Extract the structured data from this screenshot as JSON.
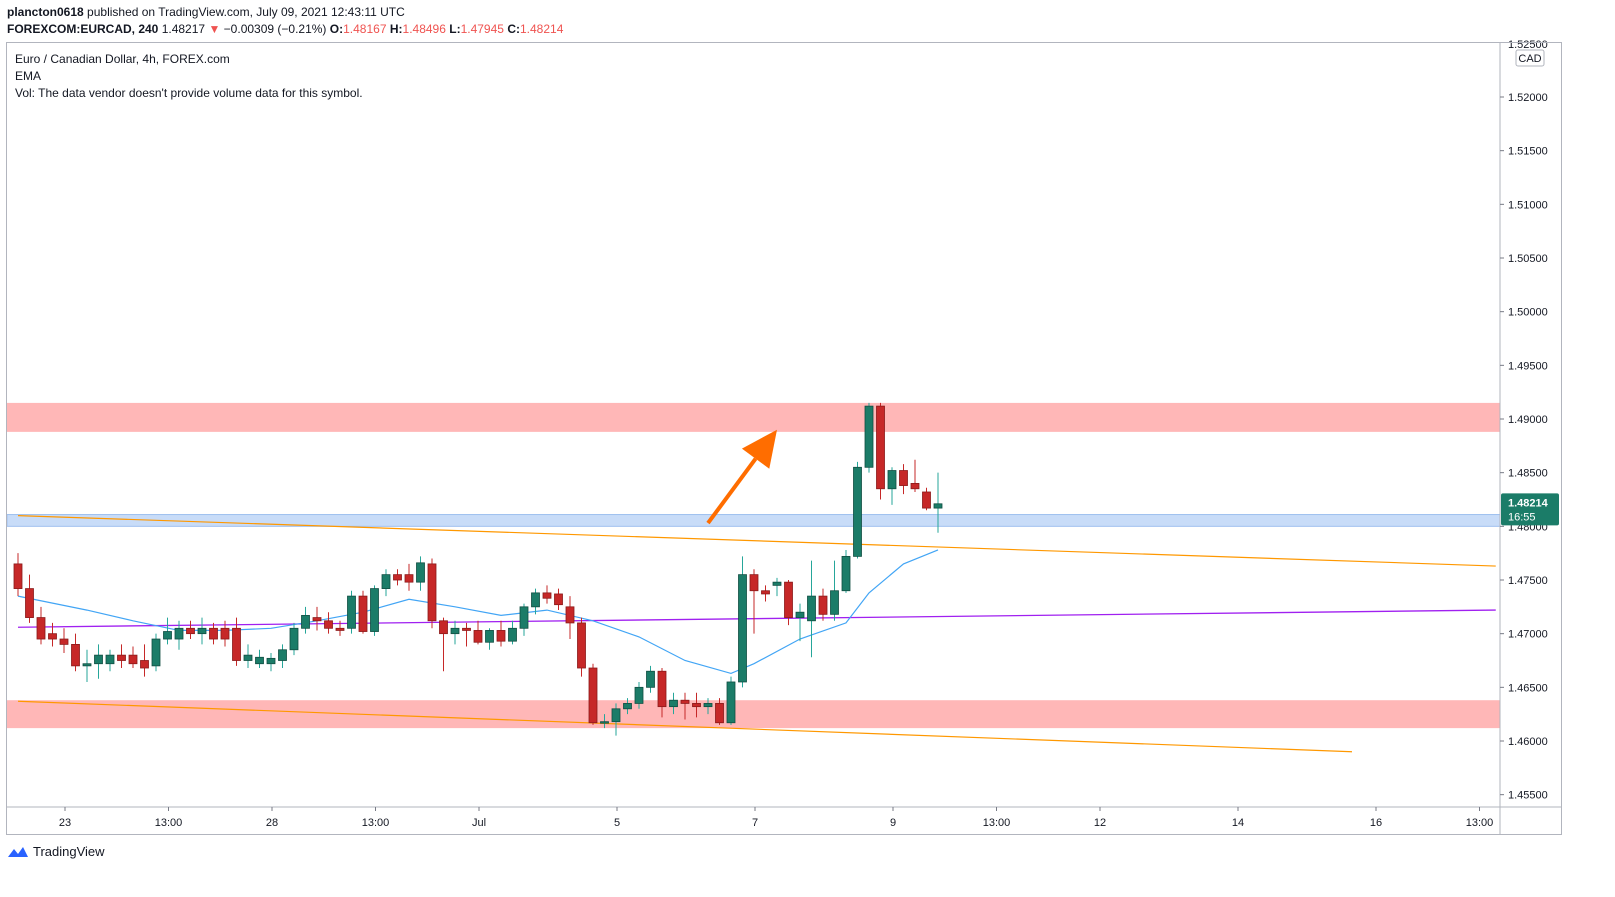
{
  "header": {
    "publisher": "plancton0618",
    "published_text": "published on TradingView.com, July 09, 2021 12:43:11 UTC",
    "symbol": "FOREXCOM:EURCAD, 240",
    "last": "1.48217",
    "change": "−0.00309 (−0.21%)",
    "o_label": "O:",
    "o": "1.48167",
    "h_label": "H:",
    "h": "1.48496",
    "l_label": "L:",
    "l": "1.47945",
    "c_label": "C:",
    "c": "1.48214"
  },
  "legend": {
    "title": "Euro / Canadian Dollar, 4h, FOREX.com",
    "indicator": "EMA",
    "volume_note": "Vol: The data vendor doesn't provide volume data for this symbol."
  },
  "price_scale": {
    "currency": "CAD",
    "current_price": "1.48214",
    "countdown": "16:55",
    "top_partial": "1.52500"
  },
  "branding": {
    "name": "TradingView"
  },
  "colors": {
    "up": "#26a69a",
    "up_body": "#1b7c68",
    "down": "#c62828",
    "resistance_zone": "#ffb7b7",
    "support_zone": "#c8dcf8",
    "trendline": "#ff9800",
    "ema": "#42a5f5",
    "purple_line": "#a020f0",
    "arrow": "#ff6d00",
    "price_tag": "#1b7c68"
  },
  "chart_data": {
    "type": "candlestick",
    "symbol": "FOREXCOM:EURCAD",
    "timeframe": "4h",
    "ylim": [
      1.454,
      1.525
    ],
    "y_ticks": [
      1.455,
      1.46,
      1.465,
      1.47,
      1.475,
      1.48,
      1.485,
      1.49,
      1.495,
      1.5,
      1.505,
      1.51,
      1.515,
      1.52
    ],
    "y_tick_labels": [
      "1.45500",
      "1.46000",
      "1.46500",
      "1.47000",
      "1.47500",
      "1.48000",
      "1.48500",
      "1.49000",
      "1.49500",
      "1.50000",
      "1.50500",
      "1.51000",
      "1.51500",
      "1.52000"
    ],
    "x_range": [
      0,
      125
    ],
    "x_ticks": [
      {
        "x": 4,
        "label": "23"
      },
      {
        "x": 13,
        "label": "13:00"
      },
      {
        "x": 22,
        "label": "28"
      },
      {
        "x": 31,
        "label": "13:00"
      },
      {
        "x": 40,
        "label": "Jul"
      },
      {
        "x": 52,
        "label": "5"
      },
      {
        "x": 64,
        "label": "7"
      },
      {
        "x": 76,
        "label": "9"
      },
      {
        "x": 85,
        "label": "13:00"
      },
      {
        "x": 94,
        "label": "12"
      },
      {
        "x": 106,
        "label": "14"
      },
      {
        "x": 118,
        "label": "16"
      },
      {
        "x": 127,
        "label": "13:00"
      }
    ],
    "candles": [
      {
        "o": 1.4765,
        "h": 1.4775,
        "l": 1.4735,
        "c": 1.4742
      },
      {
        "o": 1.4742,
        "h": 1.4755,
        "l": 1.471,
        "c": 1.4715
      },
      {
        "o": 1.4715,
        "h": 1.4725,
        "l": 1.469,
        "c": 1.4695
      },
      {
        "o": 1.47,
        "h": 1.471,
        "l": 1.4688,
        "c": 1.4695
      },
      {
        "o": 1.4695,
        "h": 1.4705,
        "l": 1.4682,
        "c": 1.469
      },
      {
        "o": 1.469,
        "h": 1.47,
        "l": 1.4665,
        "c": 1.467
      },
      {
        "o": 1.467,
        "h": 1.4685,
        "l": 1.4655,
        "c": 1.4672
      },
      {
        "o": 1.4672,
        "h": 1.469,
        "l": 1.4658,
        "c": 1.468
      },
      {
        "o": 1.4672,
        "h": 1.4685,
        "l": 1.4665,
        "c": 1.468
      },
      {
        "o": 1.468,
        "h": 1.469,
        "l": 1.4668,
        "c": 1.4675
      },
      {
        "o": 1.468,
        "h": 1.4688,
        "l": 1.4668,
        "c": 1.4672
      },
      {
        "o": 1.4675,
        "h": 1.469,
        "l": 1.466,
        "c": 1.4668
      },
      {
        "o": 1.467,
        "h": 1.47,
        "l": 1.4665,
        "c": 1.4695
      },
      {
        "o": 1.4695,
        "h": 1.4715,
        "l": 1.469,
        "c": 1.4702
      },
      {
        "o": 1.4695,
        "h": 1.4712,
        "l": 1.4685,
        "c": 1.4705
      },
      {
        "o": 1.4705,
        "h": 1.4712,
        "l": 1.4695,
        "c": 1.47
      },
      {
        "o": 1.47,
        "h": 1.4715,
        "l": 1.469,
        "c": 1.4705
      },
      {
        "o": 1.4705,
        "h": 1.471,
        "l": 1.469,
        "c": 1.4695
      },
      {
        "o": 1.4705,
        "h": 1.4712,
        "l": 1.4688,
        "c": 1.4695
      },
      {
        "o": 1.4705,
        "h": 1.4715,
        "l": 1.467,
        "c": 1.4675
      },
      {
        "o": 1.4675,
        "h": 1.469,
        "l": 1.4668,
        "c": 1.468
      },
      {
        "o": 1.4672,
        "h": 1.4685,
        "l": 1.4668,
        "c": 1.4678
      },
      {
        "o": 1.4672,
        "h": 1.4682,
        "l": 1.4665,
        "c": 1.4677
      },
      {
        "o": 1.4675,
        "h": 1.469,
        "l": 1.4668,
        "c": 1.4685
      },
      {
        "o": 1.4685,
        "h": 1.471,
        "l": 1.468,
        "c": 1.4705
      },
      {
        "o": 1.4705,
        "h": 1.4725,
        "l": 1.47,
        "c": 1.4717
      },
      {
        "o": 1.4715,
        "h": 1.4725,
        "l": 1.4703,
        "c": 1.4712
      },
      {
        "o": 1.4712,
        "h": 1.472,
        "l": 1.47,
        "c": 1.4705
      },
      {
        "o": 1.4705,
        "h": 1.4712,
        "l": 1.4698,
        "c": 1.4703
      },
      {
        "o": 1.4705,
        "h": 1.474,
        "l": 1.47,
        "c": 1.4735
      },
      {
        "o": 1.4735,
        "h": 1.474,
        "l": 1.47,
        "c": 1.4702
      },
      {
        "o": 1.4702,
        "h": 1.4745,
        "l": 1.4698,
        "c": 1.4742
      },
      {
        "o": 1.4742,
        "h": 1.476,
        "l": 1.4735,
        "c": 1.4755
      },
      {
        "o": 1.4755,
        "h": 1.476,
        "l": 1.4745,
        "c": 1.475
      },
      {
        "o": 1.4755,
        "h": 1.4765,
        "l": 1.474,
        "c": 1.4748
      },
      {
        "o": 1.4748,
        "h": 1.4772,
        "l": 1.474,
        "c": 1.4766
      },
      {
        "o": 1.4765,
        "h": 1.477,
        "l": 1.4705,
        "c": 1.4712
      },
      {
        "o": 1.4712,
        "h": 1.4715,
        "l": 1.4665,
        "c": 1.47
      },
      {
        "o": 1.47,
        "h": 1.4712,
        "l": 1.469,
        "c": 1.4705
      },
      {
        "o": 1.4705,
        "h": 1.471,
        "l": 1.4688,
        "c": 1.4703
      },
      {
        "o": 1.4703,
        "h": 1.4712,
        "l": 1.469,
        "c": 1.4692
      },
      {
        "o": 1.4692,
        "h": 1.4705,
        "l": 1.4685,
        "c": 1.4703
      },
      {
        "o": 1.4703,
        "h": 1.4712,
        "l": 1.4688,
        "c": 1.4693
      },
      {
        "o": 1.4693,
        "h": 1.4712,
        "l": 1.469,
        "c": 1.4705
      },
      {
        "o": 1.4705,
        "h": 1.4728,
        "l": 1.4698,
        "c": 1.4725
      },
      {
        "o": 1.4725,
        "h": 1.4742,
        "l": 1.4718,
        "c": 1.4738
      },
      {
        "o": 1.4738,
        "h": 1.4745,
        "l": 1.4728,
        "c": 1.4733
      },
      {
        "o": 1.4737,
        "h": 1.4742,
        "l": 1.4722,
        "c": 1.4727
      },
      {
        "o": 1.4725,
        "h": 1.4735,
        "l": 1.4695,
        "c": 1.471
      },
      {
        "o": 1.471,
        "h": 1.4715,
        "l": 1.466,
        "c": 1.4668
      },
      {
        "o": 1.4668,
        "h": 1.4672,
        "l": 1.4615,
        "c": 1.4617
      },
      {
        "o": 1.4617,
        "h": 1.4625,
        "l": 1.4612,
        "c": 1.4618
      },
      {
        "o": 1.4618,
        "h": 1.4635,
        "l": 1.4605,
        "c": 1.463
      },
      {
        "o": 1.463,
        "h": 1.464,
        "l": 1.4625,
        "c": 1.4635
      },
      {
        "o": 1.4635,
        "h": 1.4655,
        "l": 1.463,
        "c": 1.465
      },
      {
        "o": 1.465,
        "h": 1.467,
        "l": 1.4645,
        "c": 1.4665
      },
      {
        "o": 1.4665,
        "h": 1.4668,
        "l": 1.4622,
        "c": 1.4632
      },
      {
        "o": 1.4632,
        "h": 1.4645,
        "l": 1.4625,
        "c": 1.4638
      },
      {
        "o": 1.4638,
        "h": 1.4645,
        "l": 1.462,
        "c": 1.4635
      },
      {
        "o": 1.4635,
        "h": 1.4645,
        "l": 1.4622,
        "c": 1.4632
      },
      {
        "o": 1.4632,
        "h": 1.464,
        "l": 1.4625,
        "c": 1.4635
      },
      {
        "o": 1.4635,
        "h": 1.464,
        "l": 1.4615,
        "c": 1.4617
      },
      {
        "o": 1.4617,
        "h": 1.466,
        "l": 1.4615,
        "c": 1.4655
      },
      {
        "o": 1.4655,
        "h": 1.4772,
        "l": 1.465,
        "c": 1.4755
      },
      {
        "o": 1.4755,
        "h": 1.476,
        "l": 1.47,
        "c": 1.474
      },
      {
        "o": 1.474,
        "h": 1.4745,
        "l": 1.473,
        "c": 1.4737
      },
      {
        "o": 1.4745,
        "h": 1.4752,
        "l": 1.4735,
        "c": 1.4748
      },
      {
        "o": 1.4748,
        "h": 1.475,
        "l": 1.4708,
        "c": 1.4715
      },
      {
        "o": 1.4715,
        "h": 1.4728,
        "l": 1.4693,
        "c": 1.472
      },
      {
        "o": 1.4712,
        "h": 1.4768,
        "l": 1.4678,
        "c": 1.4735
      },
      {
        "o": 1.4735,
        "h": 1.4742,
        "l": 1.4712,
        "c": 1.4718
      },
      {
        "o": 1.4718,
        "h": 1.4768,
        "l": 1.4712,
        "c": 1.474
      },
      {
        "o": 1.474,
        "h": 1.4778,
        "l": 1.4738,
        "c": 1.4772
      },
      {
        "o": 1.4772,
        "h": 1.486,
        "l": 1.477,
        "c": 1.4855
      },
      {
        "o": 1.4855,
        "h": 1.4915,
        "l": 1.485,
        "c": 1.4912
      },
      {
        "o": 1.4912,
        "h": 1.4915,
        "l": 1.4825,
        "c": 1.4835
      },
      {
        "o": 1.4835,
        "h": 1.4855,
        "l": 1.482,
        "c": 1.4852
      },
      {
        "o": 1.4852,
        "h": 1.4858,
        "l": 1.483,
        "c": 1.4838
      },
      {
        "o": 1.484,
        "h": 1.4862,
        "l": 1.4832,
        "c": 1.4835
      },
      {
        "o": 1.4832,
        "h": 1.4836,
        "l": 1.4815,
        "c": 1.4817
      },
      {
        "o": 1.4817,
        "h": 1.485,
        "l": 1.4794,
        "c": 1.4821
      }
    ],
    "ema": [
      [
        0,
        1.4735
      ],
      [
        6,
        1.4722
      ],
      [
        10,
        1.4712
      ],
      [
        14,
        1.4703
      ],
      [
        18,
        1.4703
      ],
      [
        22,
        1.4705
      ],
      [
        26,
        1.4712
      ],
      [
        30,
        1.472
      ],
      [
        34,
        1.4732
      ],
      [
        38,
        1.4725
      ],
      [
        42,
        1.4717
      ],
      [
        46,
        1.4722
      ],
      [
        50,
        1.4712
      ],
      [
        54,
        1.4697
      ],
      [
        58,
        1.4675
      ],
      [
        62,
        1.4663
      ],
      [
        64,
        1.4672
      ],
      [
        68,
        1.4695
      ],
      [
        72,
        1.471
      ],
      [
        74,
        1.4738
      ],
      [
        77,
        1.4765
      ],
      [
        80,
        1.4778
      ]
    ],
    "resistance_zone": [
      1.4888,
      1.4915
    ],
    "support_zone": [
      1.48,
      1.4811
    ],
    "demand_zone": [
      1.4612,
      1.4638
    ],
    "trendlines": [
      {
        "name": "upper",
        "from": [
          0,
          1.481
        ],
        "to": [
          128.5,
          1.4763
        ]
      },
      {
        "name": "lower",
        "from": [
          0,
          1.4637
        ],
        "to": [
          116,
          1.459
        ]
      }
    ],
    "purple_line": {
      "from": [
        0,
        1.4706
      ],
      "to": [
        128.5,
        1.4722
      ]
    },
    "arrow": {
      "from": [
        60,
        1.4803
      ],
      "to": [
        66,
        1.489
      ]
    }
  }
}
